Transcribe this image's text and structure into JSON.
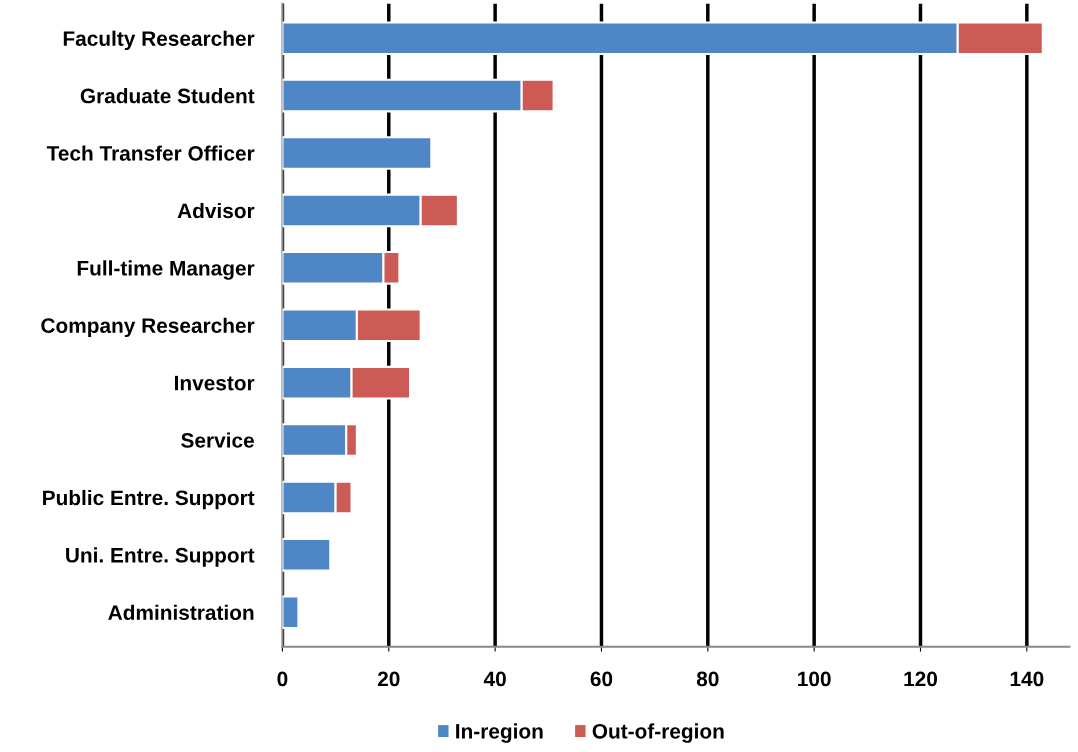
{
  "chart_data": {
    "type": "bar",
    "orientation": "horizontal",
    "stacked": true,
    "categories": [
      "Faculty Researcher",
      "Graduate Student",
      "Tech Transfer Officer",
      "Advisor",
      "Full-time Manager",
      "Company Researcher",
      "Investor",
      "Service",
      "Public Entre. Support",
      "Uni. Entre. Support",
      "Administration"
    ],
    "series": [
      {
        "name": "In-region",
        "color": "#4f86c6",
        "values": [
          127,
          45,
          28,
          26,
          19,
          14,
          13,
          12,
          10,
          9,
          3
        ]
      },
      {
        "name": "Out-of-region",
        "color": "#cd5b55",
        "values": [
          16,
          6,
          null,
          7,
          3,
          12,
          11,
          2,
          3,
          null,
          null
        ]
      }
    ],
    "xlim": [
      0,
      148
    ],
    "xticks": [
      0,
      20,
      40,
      60,
      80,
      100,
      120,
      140
    ],
    "grid": "x",
    "legend": "bottom"
  }
}
